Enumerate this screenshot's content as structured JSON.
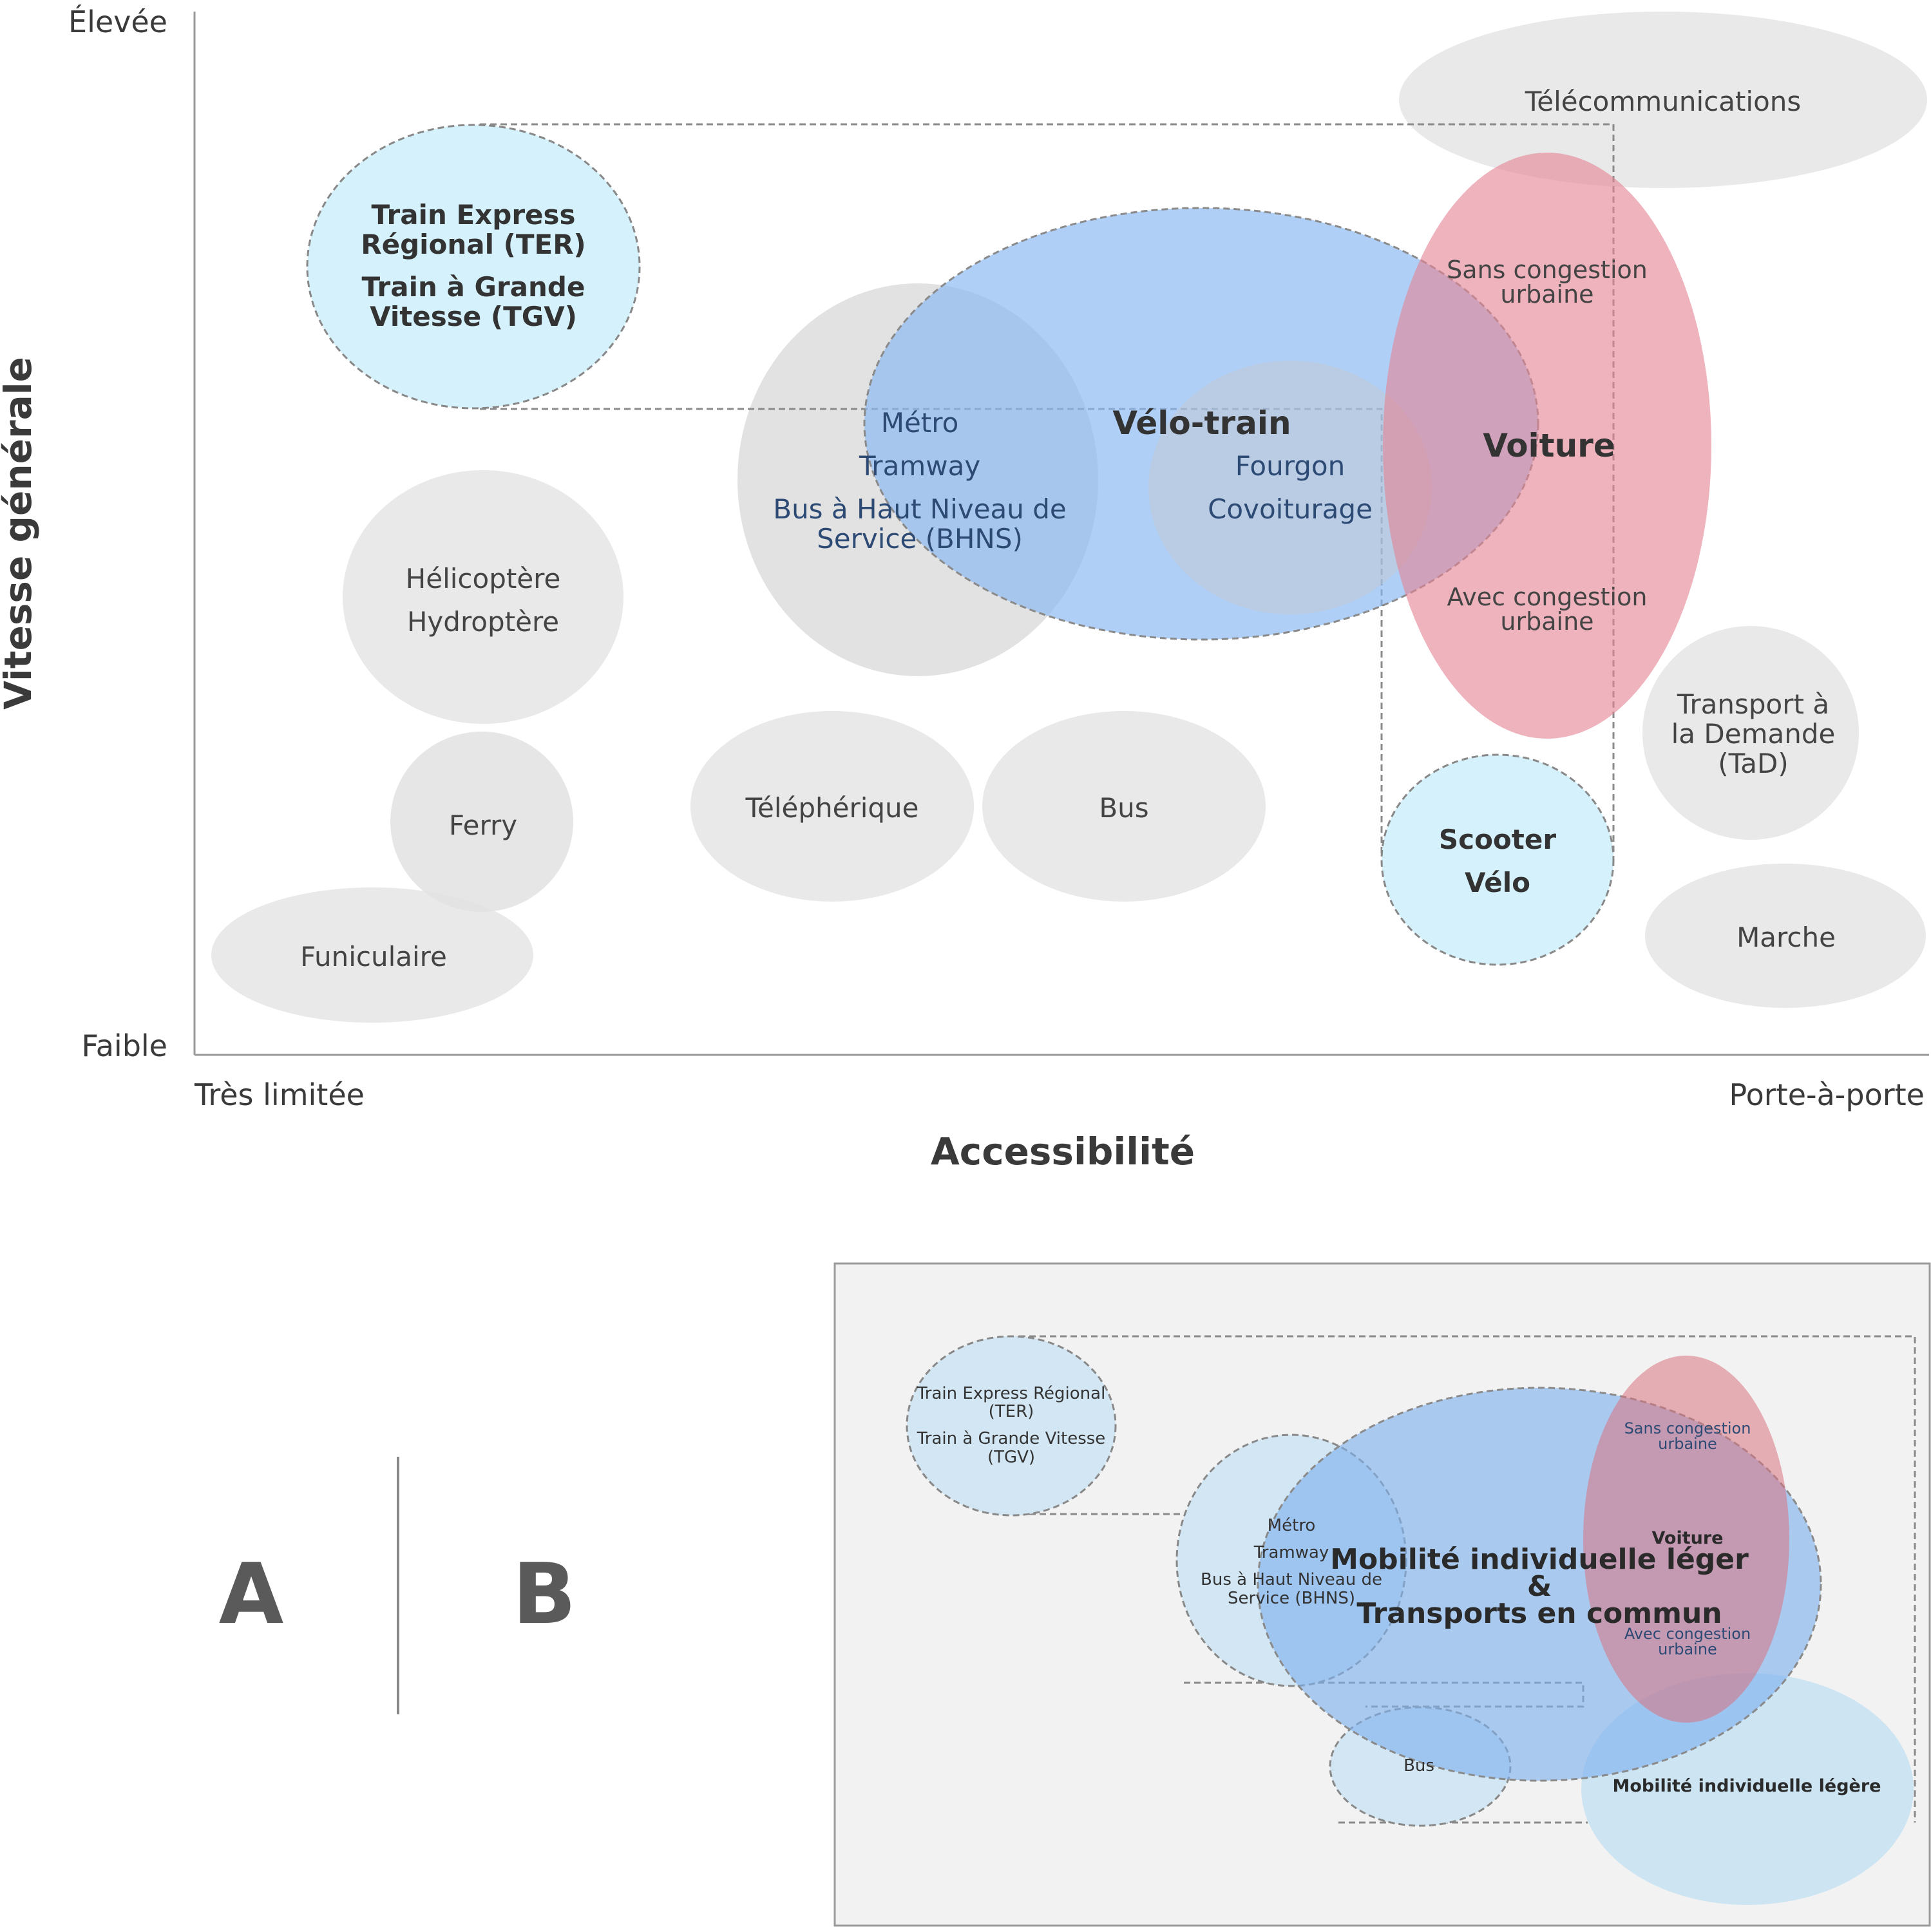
{
  "main": {
    "y_high": "Élevée",
    "y_low": "Faible",
    "y_title": "Vitesse générale",
    "x_low": "Très limitée",
    "x_high": "Porte-à-porte",
    "x_title": "Accessibilité",
    "telecom": "Télécommunications",
    "ter_1": "Train Express",
    "ter_2": "Régional (TER)",
    "tgv_1": "Train à Grande",
    "tgv_2": "Vitesse (TGV)",
    "velo_train": "Vélo-train",
    "metro": "Métro",
    "tramway": "Tramway",
    "bhns_1": "Bus à Haut Niveau de",
    "bhns_2": "Service (BHNS)",
    "fourgon": "Fourgon",
    "covoiturage": "Covoiturage",
    "sans_cong_1": "Sans congestion",
    "sans_cong_2": "urbaine",
    "voiture": "Voiture",
    "avec_cong_1": "Avec congestion",
    "avec_cong_2": "urbaine",
    "helicoptere": "Hélicoptère",
    "hydroptere": "Hydroptère",
    "ferry": "Ferry",
    "funiculaire": "Funiculaire",
    "telepherique": "Téléphérique",
    "bus": "Bus",
    "scooter": "Scooter",
    "velo": "Vélo",
    "tad_1": "Transport à",
    "tad_2": "la Demande",
    "tad_3": "(TaD)",
    "marche": "Marche"
  },
  "panels": {
    "a": "A",
    "b": "B"
  },
  "inset": {
    "ter_1": "Train Express Régional",
    "ter_2": "(TER)",
    "tgv_1": "Train à Grande Vitesse",
    "tgv_2": "(TGV)",
    "metro": "Métro",
    "tramway": "Tramway",
    "bhns_1": "Bus à Haut Niveau de",
    "bhns_2": "Service (BHNS)",
    "center_1": "Mobilité individuelle léger",
    "center_2": "&",
    "center_3": "Transports en commun",
    "sans_cong_1": "Sans congestion",
    "sans_cong_2": "urbaine",
    "voiture": "Voiture",
    "avec_cong_1": "Avec congestion",
    "avec_cong_2": "urbaine",
    "bus": "Bus",
    "mil": "Mobilité individuelle légère"
  },
  "colors": {
    "grey_bubble": "#e9e9e9",
    "light_blue": "#d5f1fb",
    "blue": "#8ab8f2",
    "red": "#e38494",
    "inset_bg": "#f2f2f2"
  }
}
